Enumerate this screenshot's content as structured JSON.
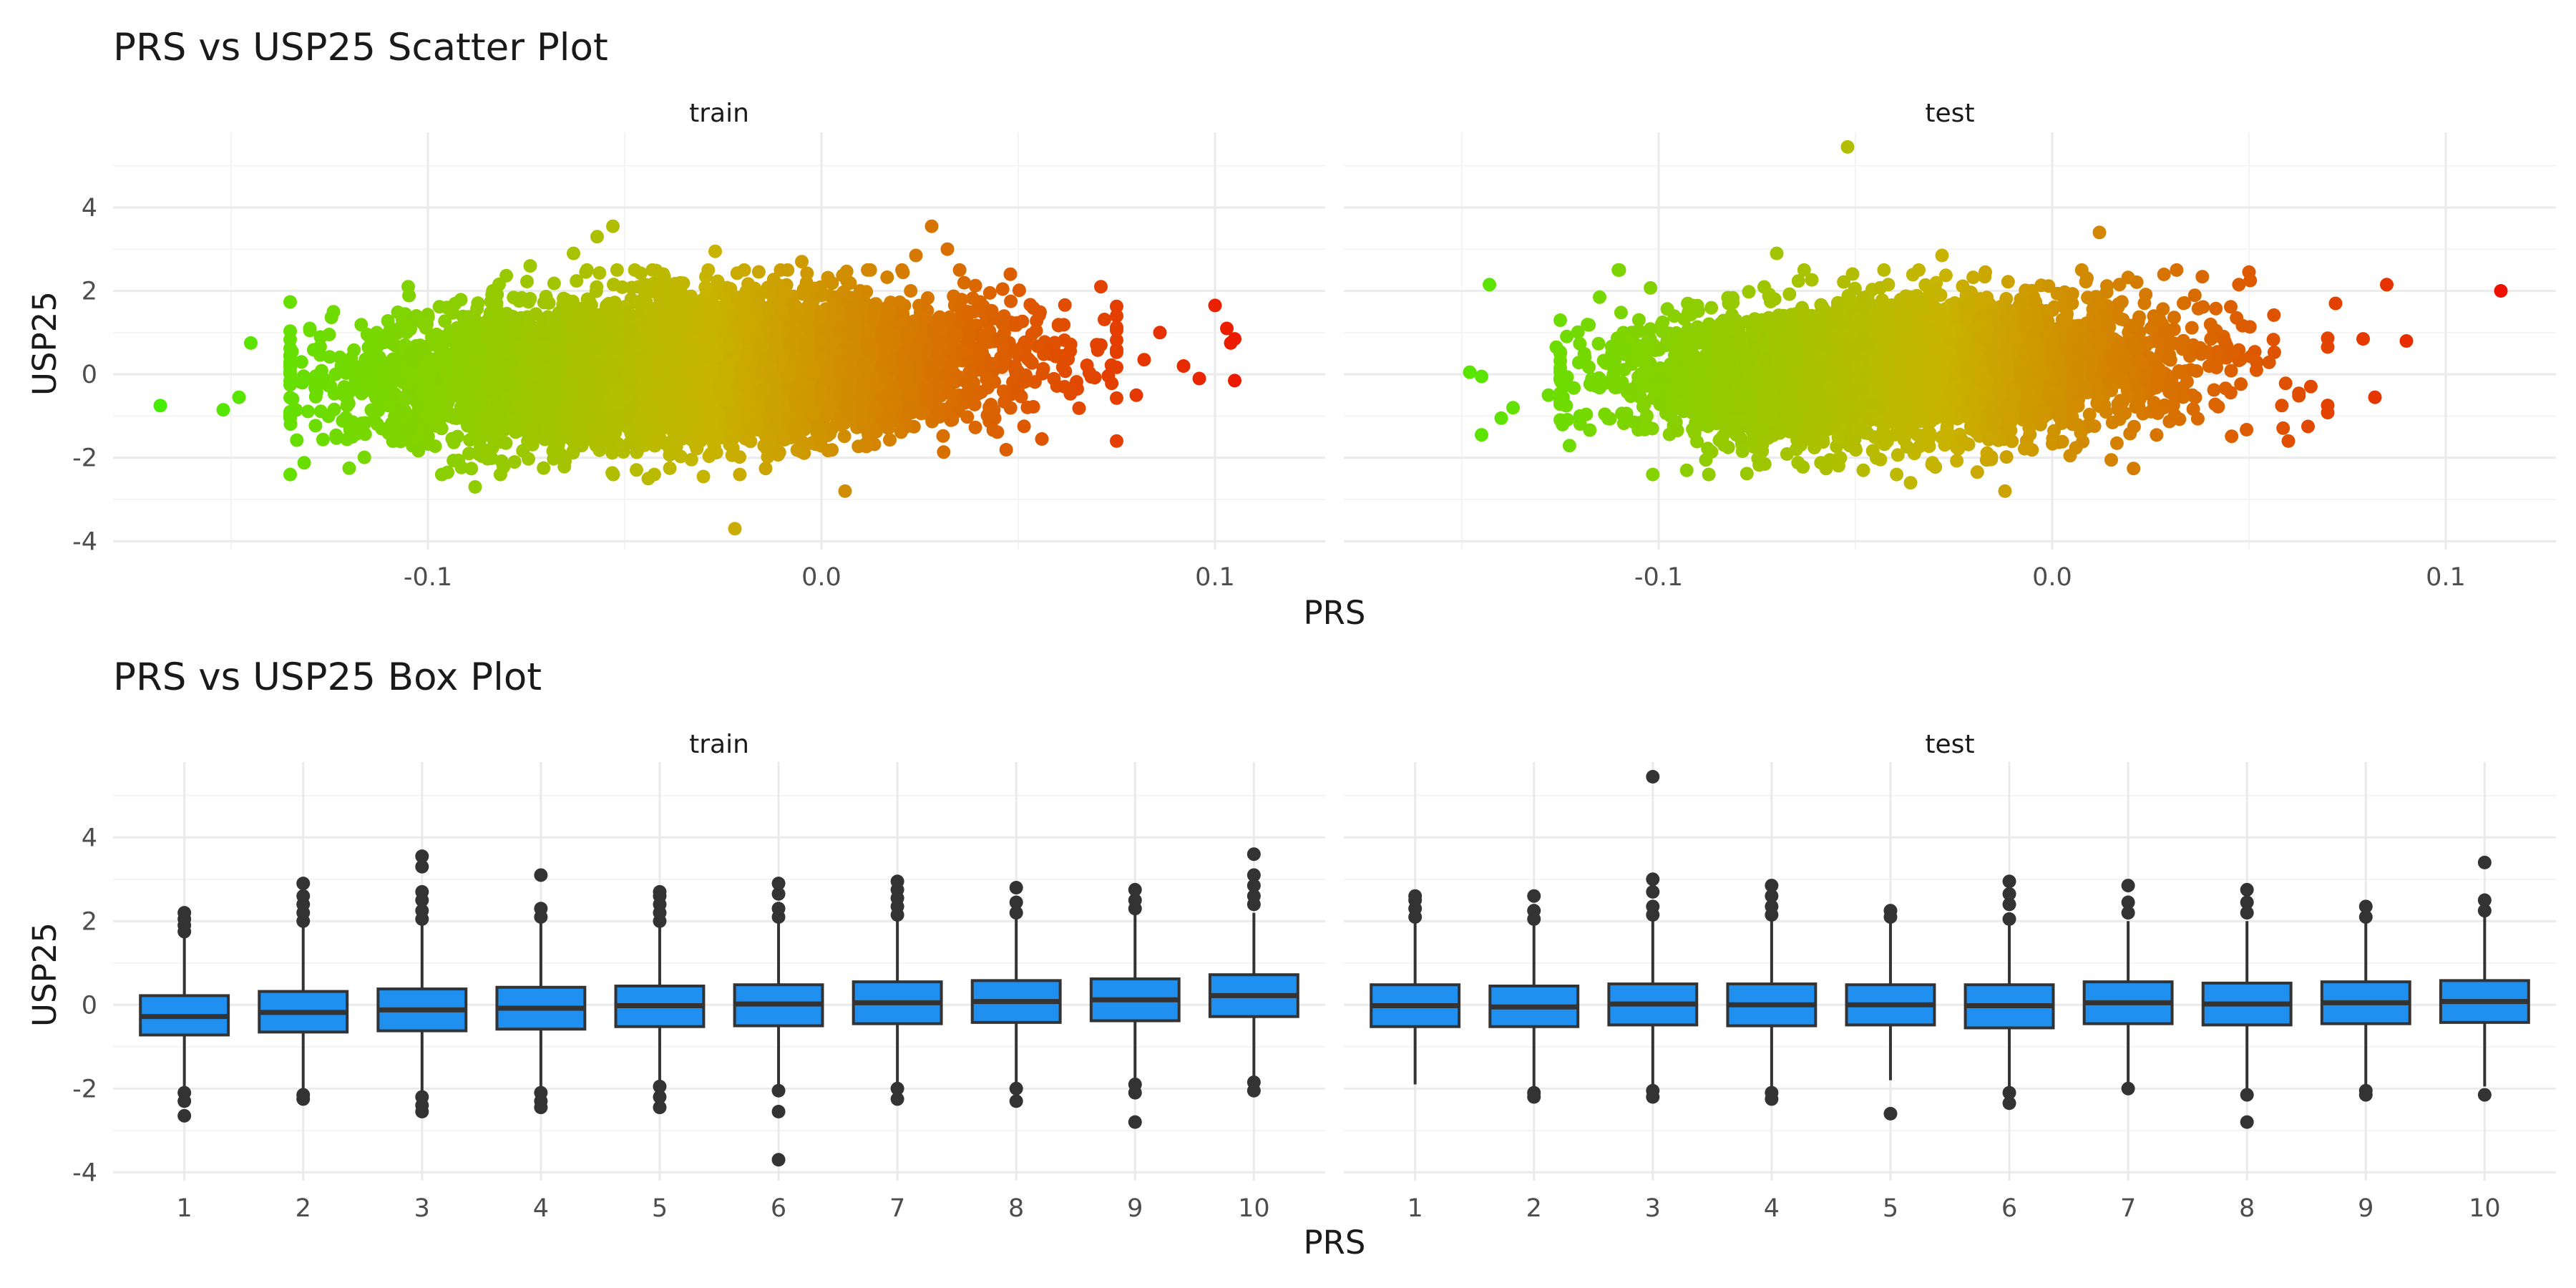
{
  "chart_data": [
    {
      "type": "scatter",
      "title": "PRS vs USP25 Scatter Plot",
      "xlabel": "PRS",
      "ylabel": "USP25",
      "xlim": [
        -0.18,
        0.128
      ],
      "ylim": [
        -4.2,
        5.8
      ],
      "x_ticks": [
        -0.1,
        0.0,
        0.1
      ],
      "x_tick_labels": [
        "-0.1",
        "0.0",
        "0.1"
      ],
      "y_ticks": [
        -4,
        -2,
        0,
        2,
        4
      ],
      "y_tick_labels": [
        "-4",
        "-2",
        "0",
        "2",
        "4"
      ],
      "grid": true,
      "legend": "none",
      "color_low": "#44ee00",
      "color_mid": "#c8b400",
      "color_high": "#ee1100",
      "panels": [
        {
          "facet": "train",
          "points_sample": [
            {
              "x": -0.168,
              "y": -0.75
            },
            {
              "x": -0.152,
              "y": -0.85
            },
            {
              "x": -0.148,
              "y": -0.55
            },
            {
              "x": -0.145,
              "y": 0.75
            },
            {
              "x": -0.13,
              "y": 1.1
            },
            {
              "x": -0.124,
              "y": 1.5
            },
            {
              "x": -0.12,
              "y": -2.25
            },
            {
              "x": -0.105,
              "y": 2.1
            },
            {
              "x": -0.095,
              "y": -2.35
            },
            {
              "x": -0.088,
              "y": -2.7
            },
            {
              "x": -0.074,
              "y": 2.6
            },
            {
              "x": -0.063,
              "y": 2.9
            },
            {
              "x": -0.057,
              "y": 3.3
            },
            {
              "x": -0.053,
              "y": 3.55
            },
            {
              "x": -0.044,
              "y": -2.5
            },
            {
              "x": -0.03,
              "y": -2.45
            },
            {
              "x": -0.027,
              "y": 2.95
            },
            {
              "x": -0.022,
              "y": -3.7
            },
            {
              "x": -0.005,
              "y": 2.7
            },
            {
              "x": 0.006,
              "y": -2.8
            },
            {
              "x": 0.024,
              "y": 2.85
            },
            {
              "x": 0.028,
              "y": 3.55
            },
            {
              "x": 0.032,
              "y": 3.0
            },
            {
              "x": 0.048,
              "y": 2.4
            },
            {
              "x": 0.056,
              "y": -1.55
            },
            {
              "x": 0.065,
              "y": -0.35
            },
            {
              "x": 0.071,
              "y": 2.1
            },
            {
              "x": 0.075,
              "y": 1.4
            },
            {
              "x": 0.08,
              "y": -0.5
            },
            {
              "x": 0.082,
              "y": 0.35
            },
            {
              "x": 0.086,
              "y": 1.0
            },
            {
              "x": 0.092,
              "y": 0.2
            },
            {
              "x": 0.096,
              "y": -0.1
            },
            {
              "x": 0.1,
              "y": 1.65
            },
            {
              "x": 0.103,
              "y": 1.1
            },
            {
              "x": 0.104,
              "y": 0.75
            },
            {
              "x": 0.105,
              "y": 0.85
            },
            {
              "x": 0.105,
              "y": -0.15
            }
          ]
        },
        {
          "facet": "test",
          "points_sample": [
            {
              "x": -0.148,
              "y": 0.05
            },
            {
              "x": -0.145,
              "y": -0.05
            },
            {
              "x": -0.145,
              "y": -1.45
            },
            {
              "x": -0.14,
              "y": -1.05
            },
            {
              "x": -0.137,
              "y": -0.8
            },
            {
              "x": -0.143,
              "y": 2.15
            },
            {
              "x": -0.128,
              "y": -0.5
            },
            {
              "x": -0.126,
              "y": 0.65
            },
            {
              "x": -0.12,
              "y": -1.0
            },
            {
              "x": -0.115,
              "y": 1.85
            },
            {
              "x": -0.11,
              "y": 2.5
            },
            {
              "x": -0.088,
              "y": -2.05
            },
            {
              "x": -0.07,
              "y": 2.9
            },
            {
              "x": -0.052,
              "y": 5.45
            },
            {
              "x": -0.048,
              "y": -2.3
            },
            {
              "x": -0.036,
              "y": -2.6
            },
            {
              "x": -0.028,
              "y": 2.85
            },
            {
              "x": -0.012,
              "y": -2.8
            },
            {
              "x": 0.012,
              "y": 3.4
            },
            {
              "x": 0.015,
              "y": -2.05
            },
            {
              "x": 0.05,
              "y": 2.45
            },
            {
              "x": 0.06,
              "y": -1.6
            },
            {
              "x": 0.065,
              "y": -1.25
            },
            {
              "x": 0.072,
              "y": 1.7
            },
            {
              "x": 0.079,
              "y": 0.85
            },
            {
              "x": 0.082,
              "y": -0.55
            },
            {
              "x": 0.085,
              "y": 2.15
            },
            {
              "x": 0.09,
              "y": 0.8
            },
            {
              "x": 0.114,
              "y": 2.0
            }
          ]
        }
      ]
    },
    {
      "type": "box",
      "title": "PRS vs USP25 Box Plot",
      "xlabel": "PRS",
      "ylabel": "USP25",
      "ylim": [
        -4.2,
        5.8
      ],
      "y_ticks": [
        -4,
        -2,
        0,
        2,
        4
      ],
      "y_tick_labels": [
        "-4",
        "-2",
        "0",
        "2",
        "4"
      ],
      "categories": [
        "1",
        "2",
        "3",
        "4",
        "5",
        "6",
        "7",
        "8",
        "9",
        "10"
      ],
      "fill_color": "#1f8ff0",
      "outline_color": "#333333",
      "grid": true,
      "legend": "none",
      "panels": [
        {
          "facet": "train",
          "boxes": [
            {
              "category": "1",
              "q1": -0.72,
              "median": -0.28,
              "q3": 0.22,
              "whisker_low": -2.0,
              "whisker_high": 1.6,
              "outliers": [
                1.75,
                1.9,
                2.05,
                2.2,
                -2.1,
                -2.3,
                -2.65
              ]
            },
            {
              "category": "2",
              "q1": -0.65,
              "median": -0.18,
              "q3": 0.32,
              "whisker_low": -2.1,
              "whisker_high": 1.85,
              "outliers": [
                2.0,
                2.2,
                2.4,
                2.6,
                2.9,
                -2.15,
                -2.25
              ]
            },
            {
              "category": "3",
              "q1": -0.62,
              "median": -0.12,
              "q3": 0.38,
              "whisker_low": -2.05,
              "whisker_high": 1.9,
              "outliers": [
                2.05,
                2.25,
                2.5,
                2.7,
                3.3,
                3.55,
                -2.2,
                -2.4,
                -2.55
              ]
            },
            {
              "category": "4",
              "q1": -0.58,
              "median": -0.08,
              "q3": 0.42,
              "whisker_low": -2.0,
              "whisker_high": 1.95,
              "outliers": [
                2.1,
                2.3,
                3.1,
                -2.1,
                -2.3,
                -2.45
              ]
            },
            {
              "category": "5",
              "q1": -0.52,
              "median": -0.02,
              "q3": 0.45,
              "whisker_low": -1.9,
              "whisker_high": 1.9,
              "outliers": [
                2.0,
                2.2,
                2.4,
                2.6,
                2.7,
                -1.95,
                -2.2,
                -2.45
              ]
            },
            {
              "category": "6",
              "q1": -0.5,
              "median": 0.02,
              "q3": 0.48,
              "whisker_low": -1.95,
              "whisker_high": 1.95,
              "outliers": [
                2.1,
                2.3,
                2.65,
                2.9,
                -2.05,
                -2.55,
                -3.7
              ]
            },
            {
              "category": "7",
              "q1": -0.45,
              "median": 0.05,
              "q3": 0.55,
              "whisker_low": -1.95,
              "whisker_high": 2.0,
              "outliers": [
                2.15,
                2.35,
                2.55,
                2.75,
                2.95,
                -2.0,
                -2.25
              ]
            },
            {
              "category": "8",
              "q1": -0.42,
              "median": 0.08,
              "q3": 0.58,
              "whisker_low": -1.9,
              "whisker_high": 2.05,
              "outliers": [
                2.2,
                2.45,
                2.8,
                -2.0,
                -2.3
              ]
            },
            {
              "category": "9",
              "q1": -0.38,
              "median": 0.12,
              "q3": 0.62,
              "whisker_low": -1.8,
              "whisker_high": 2.15,
              "outliers": [
                2.3,
                2.5,
                2.75,
                -1.9,
                -2.1,
                -2.8
              ]
            },
            {
              "category": "10",
              "q1": -0.28,
              "median": 0.22,
              "q3": 0.72,
              "whisker_low": -1.75,
              "whisker_high": 2.2,
              "outliers": [
                2.4,
                2.6,
                2.85,
                3.1,
                3.6,
                -1.85,
                -2.05
              ]
            }
          ]
        },
        {
          "facet": "test",
          "boxes": [
            {
              "category": "1",
              "q1": -0.52,
              "median": -0.02,
              "q3": 0.48,
              "whisker_low": -1.9,
              "whisker_high": 1.95,
              "outliers": [
                2.1,
                2.3,
                2.5,
                2.6
              ]
            },
            {
              "category": "2",
              "q1": -0.52,
              "median": -0.05,
              "q3": 0.45,
              "whisker_low": -2.0,
              "whisker_high": 1.9,
              "outliers": [
                2.05,
                2.25,
                2.6,
                -2.1,
                -2.2
              ]
            },
            {
              "category": "3",
              "q1": -0.48,
              "median": 0.02,
              "q3": 0.5,
              "whisker_low": -1.95,
              "whisker_high": 2.0,
              "outliers": [
                2.15,
                2.35,
                2.7,
                3.0,
                5.45,
                -2.05,
                -2.2
              ]
            },
            {
              "category": "4",
              "q1": -0.5,
              "median": 0.0,
              "q3": 0.5,
              "whisker_low": -2.0,
              "whisker_high": 2.0,
              "outliers": [
                2.15,
                2.35,
                2.6,
                2.85,
                -2.1,
                -2.25
              ]
            },
            {
              "category": "5",
              "q1": -0.48,
              "median": 0.0,
              "q3": 0.48,
              "whisker_low": -1.8,
              "whisker_high": 1.95,
              "outliers": [
                2.1,
                2.25,
                -2.6
              ]
            },
            {
              "category": "6",
              "q1": -0.55,
              "median": -0.02,
              "q3": 0.48,
              "whisker_low": -1.95,
              "whisker_high": 1.9,
              "outliers": [
                2.05,
                2.4,
                2.65,
                2.95,
                -2.1,
                -2.35
              ]
            },
            {
              "category": "7",
              "q1": -0.45,
              "median": 0.05,
              "q3": 0.55,
              "whisker_low": -1.95,
              "whisker_high": 2.0,
              "outliers": [
                2.2,
                2.45,
                2.85,
                -2.0
              ]
            },
            {
              "category": "8",
              "q1": -0.48,
              "median": 0.02,
              "q3": 0.52,
              "whisker_low": -2.05,
              "whisker_high": 2.0,
              "outliers": [
                2.2,
                2.45,
                2.75,
                -2.15,
                -2.8
              ]
            },
            {
              "category": "9",
              "q1": -0.45,
              "median": 0.05,
              "q3": 0.55,
              "whisker_low": -1.95,
              "whisker_high": 2.05,
              "outliers": [
                2.1,
                2.35,
                -2.05,
                -2.15
              ]
            },
            {
              "category": "10",
              "q1": -0.42,
              "median": 0.08,
              "q3": 0.58,
              "whisker_low": -1.95,
              "whisker_high": 2.1,
              "outliers": [
                2.25,
                2.5,
                3.4,
                -2.15
              ]
            }
          ]
        }
      ]
    }
  ]
}
